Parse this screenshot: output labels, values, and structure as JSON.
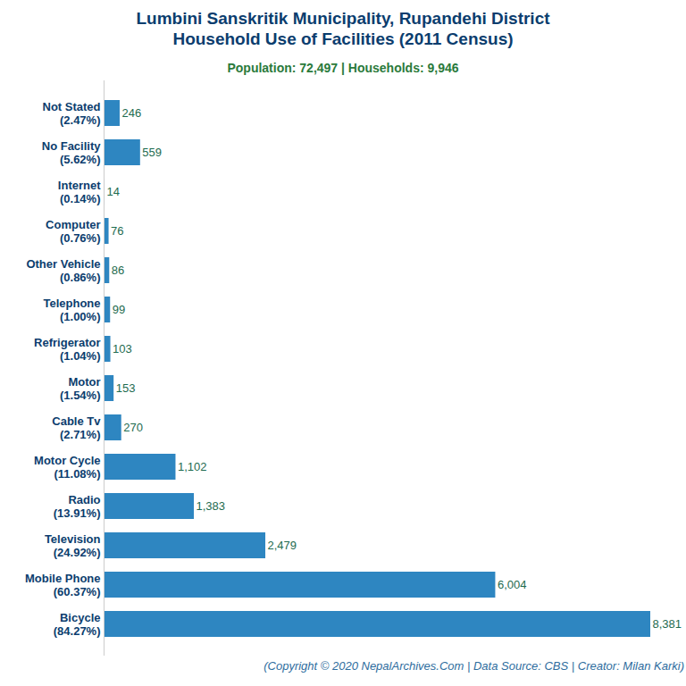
{
  "chart_data": {
    "type": "bar",
    "orientation": "horizontal",
    "title": "Lumbini Sanskritik Municipality, Rupandehi District\nHousehold Use of Facilities (2011 Census)",
    "subtitle": "Population: 72,497 | Households: 9,946",
    "caption": "(Copyright © 2020 NepalArchives.Com | Data Source: CBS | Creator: Milan Karki)",
    "categories": [
      "Not Stated\n(2.47%)",
      "No Facility\n(5.62%)",
      "Internet\n(0.14%)",
      "Computer\n(0.76%)",
      "Other Vehicle\n(0.86%)",
      "Telephone\n(1.00%)",
      "Refrigerator\n(1.04%)",
      "Motor\n(1.54%)",
      "Cable Tv\n(2.71%)",
      "Motor Cycle\n(11.08%)",
      "Radio\n(13.91%)",
      "Television\n(24.92%)",
      "Mobile Phone\n(60.37%)",
      "Bicycle\n(84.27%)"
    ],
    "values": [
      246,
      559,
      14,
      76,
      86,
      99,
      103,
      153,
      270,
      1102,
      1383,
      2479,
      6004,
      8381
    ],
    "value_labels": [
      "246",
      "559",
      "14",
      "76",
      "86",
      "99",
      "103",
      "153",
      "270",
      "1,102",
      "1,383",
      "2,479",
      "6,004",
      "8,381"
    ],
    "color": "#2e86c1",
    "xlim": [
      0,
      8381
    ],
    "xticks": [],
    "data_labels": true,
    "tick_labels": "y"
  }
}
